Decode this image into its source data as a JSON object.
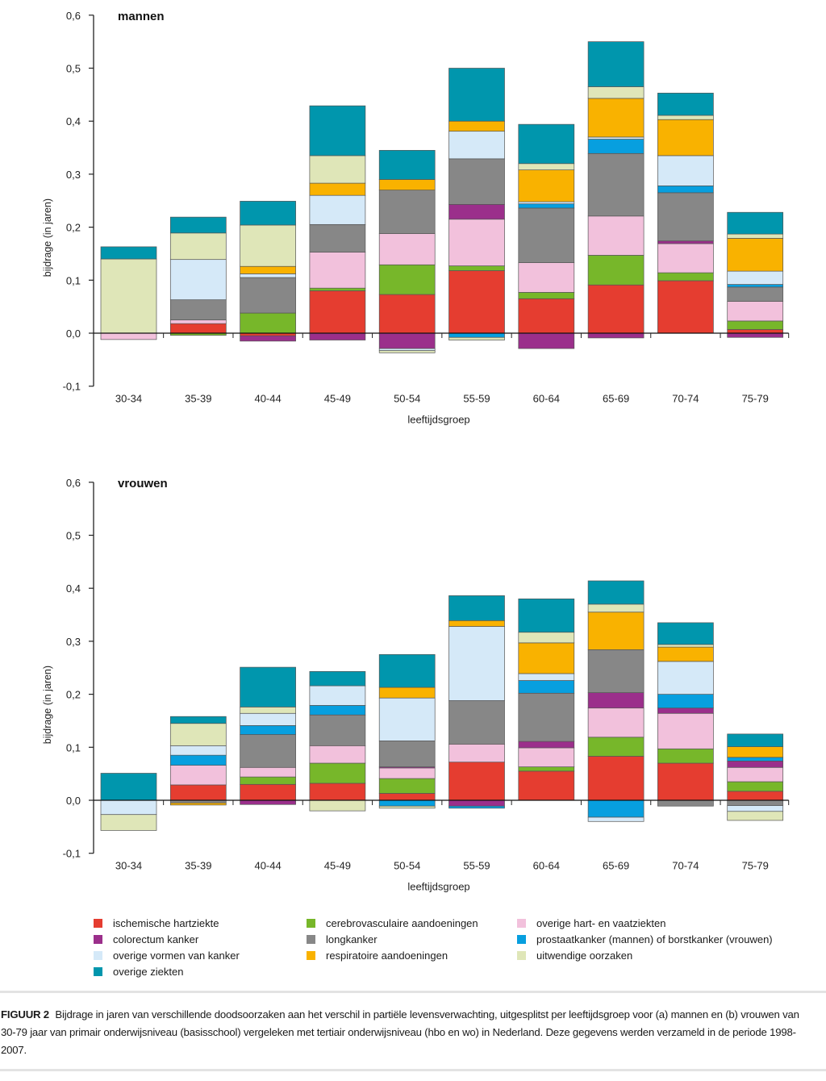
{
  "chart_data": [
    {
      "type": "bar",
      "stacked": true,
      "title": "mannen",
      "xlabel": "leeftijdsgroep",
      "ylabel": "bijdrage (in jaren)",
      "ylim": [
        -0.1,
        0.6
      ],
      "yticks": [
        "-0,1",
        "0,0",
        "0,1",
        "0,2",
        "0,3",
        "0,4",
        "0,5",
        "0,6"
      ],
      "categories": [
        "30-34",
        "35-39",
        "40-44",
        "45-49",
        "50-54",
        "55-59",
        "60-64",
        "65-69",
        "70-74",
        "75-79"
      ],
      "bars": [
        {
          "pos": [
            [
              "uitwendige",
              0.14
            ],
            [
              "overige_ziekten",
              0.023
            ]
          ],
          "neg": [
            [
              "overige_hart",
              -0.012
            ]
          ]
        },
        {
          "pos": [
            [
              "ischemisch",
              0.018
            ],
            [
              "overige_hart",
              0.007
            ],
            [
              "long",
              0.038
            ],
            [
              "overige_kanker",
              0.076
            ],
            [
              "uitwendige",
              0.05
            ],
            [
              "overige_ziekten",
              0.03
            ]
          ],
          "neg": [
            [
              "cerebro",
              -0.004
            ]
          ]
        },
        {
          "pos": [
            [
              "cerebro",
              0.038
            ],
            [
              "long",
              0.067
            ],
            [
              "overige_kanker",
              0.007
            ],
            [
              "respiratoir",
              0.014
            ],
            [
              "uitwendige",
              0.078
            ],
            [
              "overige_ziekten",
              0.045
            ]
          ],
          "neg": [
            [
              "ischemisch",
              -0.005
            ],
            [
              "colorectum",
              -0.01
            ]
          ]
        },
        {
          "pos": [
            [
              "ischemisch",
              0.08
            ],
            [
              "cerebro",
              0.005
            ],
            [
              "overige_hart",
              0.068
            ],
            [
              "long",
              0.052
            ],
            [
              "overige_kanker",
              0.055
            ],
            [
              "respiratoir",
              0.023
            ],
            [
              "uitwendige",
              0.052
            ],
            [
              "overige_ziekten",
              0.094
            ]
          ],
          "neg": [
            [
              "colorectum",
              -0.013
            ]
          ]
        },
        {
          "pos": [
            [
              "ischemisch",
              0.073
            ],
            [
              "cerebro",
              0.056
            ],
            [
              "overige_hart",
              0.059
            ],
            [
              "long",
              0.082
            ],
            [
              "respiratoir",
              0.02
            ],
            [
              "overige_ziekten",
              0.055
            ]
          ],
          "neg": [
            [
              "colorectum",
              -0.029
            ],
            [
              "overige_kanker",
              -0.004
            ],
            [
              "uitwendige",
              -0.004
            ]
          ]
        },
        {
          "pos": [
            [
              "ischemisch",
              0.118
            ],
            [
              "cerebro",
              0.009
            ],
            [
              "overige_hart",
              0.088
            ],
            [
              "colorectum",
              0.028
            ],
            [
              "long",
              0.086
            ],
            [
              "overige_kanker",
              0.052
            ],
            [
              "respiratoir",
              0.019
            ],
            [
              "overige_ziekten",
              0.1
            ]
          ],
          "neg": [
            [
              "prostaat_borst",
              -0.008
            ],
            [
              "uitwendige",
              -0.005
            ]
          ]
        },
        {
          "pos": [
            [
              "ischemisch",
              0.065
            ],
            [
              "cerebro",
              0.012
            ],
            [
              "overige_hart",
              0.056
            ],
            [
              "long",
              0.103
            ],
            [
              "prostaat_borst",
              0.008
            ],
            [
              "overige_kanker",
              0.004
            ],
            [
              "respiratoir",
              0.06
            ],
            [
              "uitwendige",
              0.012
            ],
            [
              "overige_ziekten",
              0.074
            ]
          ],
          "neg": [
            [
              "colorectum",
              -0.029
            ]
          ]
        },
        {
          "pos": [
            [
              "ischemisch",
              0.091
            ],
            [
              "cerebro",
              0.056
            ],
            [
              "overige_hart",
              0.074
            ],
            [
              "long",
              0.118
            ],
            [
              "prostaat_borst",
              0.027
            ],
            [
              "overige_kanker",
              0.004
            ],
            [
              "respiratoir",
              0.073
            ],
            [
              "uitwendige",
              0.022
            ],
            [
              "overige_ziekten",
              0.085
            ]
          ],
          "neg": [
            [
              "colorectum",
              -0.009
            ]
          ]
        },
        {
          "pos": [
            [
              "ischemisch",
              0.099
            ],
            [
              "cerebro",
              0.015
            ],
            [
              "overige_hart",
              0.055
            ],
            [
              "colorectum",
              0.005
            ],
            [
              "long",
              0.091
            ],
            [
              "prostaat_borst",
              0.013
            ],
            [
              "overige_kanker",
              0.057
            ],
            [
              "respiratoir",
              0.068
            ],
            [
              "uitwendige",
              0.008
            ],
            [
              "overige_ziekten",
              0.042
            ]
          ],
          "neg": []
        },
        {
          "pos": [
            [
              "ischemisch",
              0.007
            ],
            [
              "cerebro",
              0.016
            ],
            [
              "overige_hart",
              0.037
            ],
            [
              "long",
              0.027
            ],
            [
              "prostaat_borst",
              0.005
            ],
            [
              "overige_kanker",
              0.025
            ],
            [
              "respiratoir",
              0.062
            ],
            [
              "uitwendige",
              0.008
            ],
            [
              "overige_ziekten",
              0.041
            ]
          ],
          "neg": [
            [
              "colorectum",
              -0.008
            ]
          ]
        }
      ]
    },
    {
      "type": "bar",
      "stacked": true,
      "title": "vrouwen",
      "xlabel": "leeftijdsgroep",
      "ylabel": "bijdrage (in jaren)",
      "ylim": [
        -0.1,
        0.6
      ],
      "yticks": [
        "-0,1",
        "0,0",
        "0,1",
        "0,2",
        "0,3",
        "0,4",
        "0,5",
        "0,6"
      ],
      "categories": [
        "30-34",
        "35-39",
        "40-44",
        "45-49",
        "50-54",
        "55-59",
        "60-64",
        "65-69",
        "70-74",
        "75-79"
      ],
      "bars": [
        {
          "pos": [
            [
              "overige_ziekten",
              0.051
            ]
          ],
          "neg": [
            [
              "overige_kanker",
              -0.027
            ],
            [
              "uitwendige",
              -0.03
            ]
          ]
        },
        {
          "pos": [
            [
              "ischemisch",
              0.029
            ],
            [
              "overige_hart",
              0.037
            ],
            [
              "prostaat_borst",
              0.019
            ],
            [
              "overige_kanker",
              0.018
            ],
            [
              "uitwendige",
              0.042
            ],
            [
              "overige_ziekten",
              0.013
            ]
          ],
          "neg": [
            [
              "long",
              -0.005
            ],
            [
              "respiratoir",
              -0.004
            ]
          ]
        },
        {
          "pos": [
            [
              "ischemisch",
              0.03
            ],
            [
              "cerebro",
              0.014
            ],
            [
              "overige_hart",
              0.018
            ],
            [
              "long",
              0.062
            ],
            [
              "prostaat_borst",
              0.017
            ],
            [
              "overige_kanker",
              0.023
            ],
            [
              "uitwendige",
              0.012
            ],
            [
              "overige_ziekten",
              0.075
            ]
          ],
          "neg": [
            [
              "colorectum",
              -0.008
            ]
          ]
        },
        {
          "pos": [
            [
              "ischemisch",
              0.032
            ],
            [
              "cerebro",
              0.038
            ],
            [
              "overige_hart",
              0.033
            ],
            [
              "long",
              0.058
            ],
            [
              "prostaat_borst",
              0.018
            ],
            [
              "overige_kanker",
              0.037
            ],
            [
              "overige_ziekten",
              0.027
            ]
          ],
          "neg": [
            [
              "uitwendige",
              -0.02
            ]
          ]
        },
        {
          "pos": [
            [
              "ischemisch",
              0.013
            ],
            [
              "cerebro",
              0.028
            ],
            [
              "overige_hart",
              0.02
            ],
            [
              "colorectum",
              0.002
            ],
            [
              "long",
              0.049
            ],
            [
              "overige_kanker",
              0.081
            ],
            [
              "respiratoir",
              0.02
            ],
            [
              "overige_ziekten",
              0.062
            ]
          ],
          "neg": [
            [
              "prostaat_borst",
              -0.011
            ],
            [
              "uitwendige",
              -0.004
            ]
          ]
        },
        {
          "pos": [
            [
              "ischemisch",
              0.072
            ],
            [
              "overige_hart",
              0.034
            ],
            [
              "long",
              0.082
            ],
            [
              "overige_kanker",
              0.14
            ],
            [
              "respiratoir",
              0.011
            ],
            [
              "overige_ziekten",
              0.047
            ]
          ],
          "neg": [
            [
              "colorectum",
              -0.011
            ],
            [
              "prostaat_borst",
              -0.004
            ]
          ]
        },
        {
          "pos": [
            [
              "ischemisch",
              0.055
            ],
            [
              "cerebro",
              0.008
            ],
            [
              "overige_hart",
              0.036
            ],
            [
              "colorectum",
              0.012
            ],
            [
              "long",
              0.091
            ],
            [
              "prostaat_borst",
              0.024
            ],
            [
              "overige_kanker",
              0.013
            ],
            [
              "respiratoir",
              0.058
            ],
            [
              "uitwendige",
              0.02
            ],
            [
              "overige_ziekten",
              0.063
            ]
          ],
          "neg": []
        },
        {
          "pos": [
            [
              "ischemisch",
              0.083
            ],
            [
              "cerebro",
              0.036
            ],
            [
              "overige_hart",
              0.055
            ],
            [
              "colorectum",
              0.029
            ],
            [
              "long",
              0.081
            ],
            [
              "respiratoir",
              0.071
            ],
            [
              "uitwendige",
              0.015
            ],
            [
              "overige_ziekten",
              0.044
            ]
          ],
          "neg": [
            [
              "prostaat_borst",
              -0.032
            ],
            [
              "overige_kanker",
              -0.008
            ]
          ]
        },
        {
          "pos": [
            [
              "ischemisch",
              0.07
            ],
            [
              "cerebro",
              0.027
            ],
            [
              "overige_hart",
              0.067
            ],
            [
              "colorectum",
              0.01
            ],
            [
              "prostaat_borst",
              0.026
            ],
            [
              "overige_kanker",
              0.062
            ],
            [
              "respiratoir",
              0.027
            ],
            [
              "uitwendige",
              0.005
            ],
            [
              "overige_ziekten",
              0.041
            ]
          ],
          "neg": [
            [
              "long",
              -0.011
            ]
          ]
        },
        {
          "pos": [
            [
              "ischemisch",
              0.017
            ],
            [
              "cerebro",
              0.018
            ],
            [
              "overige_hart",
              0.027
            ],
            [
              "colorectum",
              0.012
            ],
            [
              "prostaat_borst",
              0.007
            ],
            [
              "respiratoir",
              0.02
            ],
            [
              "overige_ziekten",
              0.024
            ]
          ],
          "neg": [
            [
              "long",
              -0.01
            ],
            [
              "overige_kanker",
              -0.011
            ],
            [
              "uitwendige",
              -0.017
            ]
          ]
        }
      ]
    }
  ],
  "legend": [
    {
      "key": "ischemisch",
      "label": "ischemische hartziekte",
      "color": "#e53d30"
    },
    {
      "key": "cerebro",
      "label": "cerebrovasculaire aandoeningen",
      "color": "#77b72a"
    },
    {
      "key": "overige_hart",
      "label": "overige hart- en vaatziekten",
      "color": "#f2c1dc"
    },
    {
      "key": "colorectum",
      "label": "colorectum kanker",
      "color": "#9b2f8b"
    },
    {
      "key": "long",
      "label": "longkanker",
      "color": "#878787"
    },
    {
      "key": "prostaat_borst",
      "label": "prostaatkanker (mannen) of borstkanker (vrouwen)",
      "color": "#079fdf"
    },
    {
      "key": "overige_kanker",
      "label": "overige vormen van kanker",
      "color": "#d5e9f8"
    },
    {
      "key": "respiratoir",
      "label": "respiratoire aandoeningen",
      "color": "#f9b200"
    },
    {
      "key": "uitwendige",
      "label": "uitwendige oorzaken",
      "color": "#dfe6b8"
    },
    {
      "key": "overige_ziekten",
      "label": "overige ziekten",
      "color": "#0096ad"
    }
  ],
  "caption": {
    "label": "FIGUUR 2",
    "text": "Bijdrage in jaren van verschillende doodsoorzaken aan het verschil in partiële levensverwachting, uitgesplitst per leeftijdsgroep voor (a) mannen en (b) vrouwen van 30-79 jaar van primair onderwijsniveau (basisschool) vergeleken met tertiair onderwijsniveau (hbo en wo) in Nederland. Deze gegevens werden verzameld in de periode 1998-2007."
  }
}
